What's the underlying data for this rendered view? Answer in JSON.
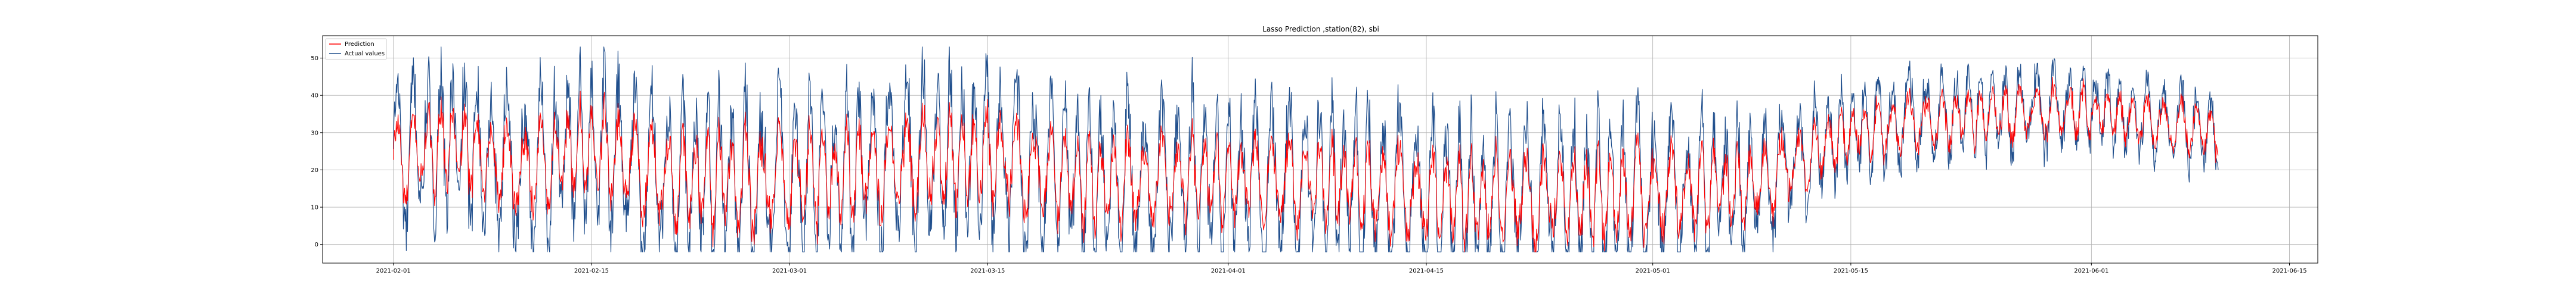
{
  "chart_data": {
    "type": "line",
    "title": "Lasso Prediction ,station(82), sbi",
    "xlabel": "",
    "ylabel": "",
    "x_start": "2021-02-01",
    "x_end": "2021-06-10",
    "xlim": [
      "2021-01-27",
      "2021-06-17"
    ],
    "ylim": [
      -5,
      56
    ],
    "x_ticks": [
      "2021-02-01",
      "2021-02-15",
      "2021-03-01",
      "2021-03-15",
      "2021-04-01",
      "2021-04-15",
      "2021-05-01",
      "2021-05-15",
      "2021-06-01",
      "2021-06-15"
    ],
    "y_ticks": [
      0,
      10,
      20,
      30,
      40,
      50
    ],
    "grid": true,
    "legend": "top-left",
    "series": [
      {
        "name": "Prediction",
        "color": "#ff0000",
        "keypoints": [
          [
            "2021-02-01",
            22
          ],
          [
            "2021-02-05",
            27
          ],
          [
            "2021-02-10",
            20
          ],
          [
            "2021-02-15",
            26
          ],
          [
            "2021-02-20",
            18
          ],
          [
            "2021-03-01",
            17
          ],
          [
            "2021-03-08",
            21
          ],
          [
            "2021-03-15",
            24
          ],
          [
            "2021-03-22",
            16
          ],
          [
            "2021-04-01",
            18
          ],
          [
            "2021-04-08",
            17
          ],
          [
            "2021-04-15",
            13
          ],
          [
            "2021-04-22",
            12
          ],
          [
            "2021-05-01",
            14
          ],
          [
            "2021-05-08",
            15
          ],
          [
            "2021-05-15",
            30
          ],
          [
            "2021-05-20",
            33
          ],
          [
            "2021-05-26",
            35
          ],
          [
            "2021-06-01",
            36
          ],
          [
            "2021-06-10",
            30
          ]
        ],
        "swing": [
          [
            "2021-02-01",
            9
          ],
          [
            "2021-03-01",
            11
          ],
          [
            "2021-04-01",
            9
          ],
          [
            "2021-05-01",
            10
          ],
          [
            "2021-05-15",
            6
          ],
          [
            "2021-06-10",
            5
          ]
        ]
      },
      {
        "name": "Actual values",
        "color": "#1f4e8c",
        "keypoints": [
          [
            "2021-02-01",
            24
          ],
          [
            "2021-02-05",
            28
          ],
          [
            "2021-02-10",
            20
          ],
          [
            "2021-02-15",
            27
          ],
          [
            "2021-02-20",
            18
          ],
          [
            "2021-03-01",
            17
          ],
          [
            "2021-03-08",
            22
          ],
          [
            "2021-03-15",
            25
          ],
          [
            "2021-03-22",
            16
          ],
          [
            "2021-04-01",
            18
          ],
          [
            "2021-04-08",
            17
          ],
          [
            "2021-04-15",
            13
          ],
          [
            "2021-04-22",
            12
          ],
          [
            "2021-05-01",
            14
          ],
          [
            "2021-05-08",
            15
          ],
          [
            "2021-05-15",
            31
          ],
          [
            "2021-05-20",
            34
          ],
          [
            "2021-05-26",
            36
          ],
          [
            "2021-06-01",
            37
          ],
          [
            "2021-06-10",
            30
          ]
        ],
        "swing": [
          [
            "2021-02-01",
            17
          ],
          [
            "2021-03-01",
            20
          ],
          [
            "2021-04-01",
            18
          ],
          [
            "2021-05-01",
            18
          ],
          [
            "2021-05-15",
            10
          ],
          [
            "2021-06-10",
            8
          ]
        ]
      }
    ]
  }
}
